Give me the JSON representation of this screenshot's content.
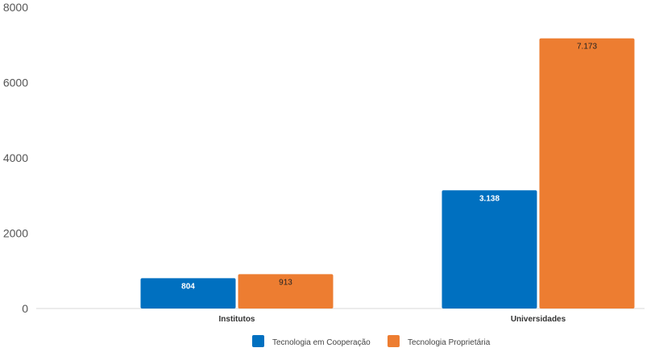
{
  "chart_data": {
    "type": "bar",
    "categories": [
      "Institutos",
      "Universidades"
    ],
    "series": [
      {
        "name": "Tecnologia em Cooperação",
        "values": [
          804,
          3138
        ],
        "labels": [
          "804",
          "3.138"
        ],
        "color": "#0070c0",
        "label_color": "#ffffff"
      },
      {
        "name": "Tecnologia Proprietária",
        "values": [
          913,
          7173
        ],
        "labels": [
          "913",
          "7.173"
        ],
        "color": "#ed7d31",
        "label_color": "#222222"
      }
    ],
    "yticks": [
      "0",
      "2000",
      "4000",
      "6000",
      "8000"
    ],
    "ylim": [
      0,
      8000
    ],
    "grid": false,
    "legend_position": "bottom"
  }
}
